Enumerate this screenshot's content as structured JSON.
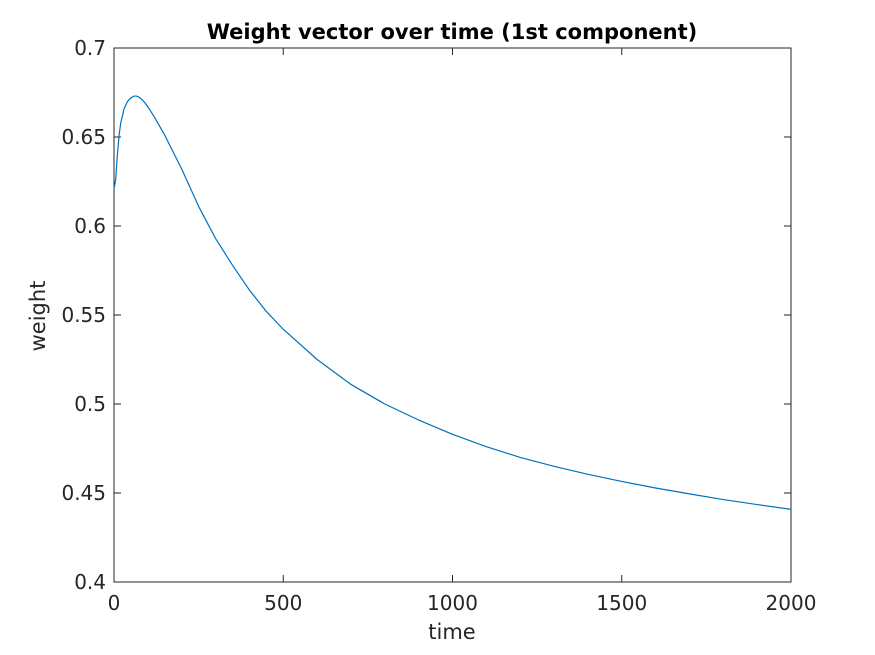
{
  "chart_data": {
    "type": "line",
    "title": "Weight vector over time (1st component)",
    "xlabel": "time",
    "ylabel": "weight",
    "xlim": [
      0,
      2000
    ],
    "ylim": [
      0.4,
      0.7
    ],
    "xticks": [
      0,
      500,
      1000,
      1500,
      2000
    ],
    "xtick_labels": [
      "0",
      "500",
      "1000",
      "1500",
      "2000"
    ],
    "yticks": [
      0.4,
      0.45,
      0.5,
      0.55,
      0.6,
      0.65,
      0.7
    ],
    "ytick_labels": [
      "0.4",
      "0.45",
      "0.5",
      "0.55",
      "0.6",
      "0.65",
      "0.7"
    ],
    "grid": false,
    "legend": false,
    "series": [
      {
        "color": "#0072bd",
        "x": [
          0,
          5,
          10,
          15,
          20,
          30,
          40,
          50,
          60,
          65,
          70,
          80,
          90,
          100,
          120,
          150,
          200,
          250,
          300,
          350,
          400,
          450,
          500,
          600,
          700,
          800,
          900,
          1000,
          1100,
          1200,
          1300,
          1400,
          1500,
          1600,
          1700,
          1800,
          1900,
          2000
        ],
        "y": [
          0.621,
          0.626,
          0.64,
          0.651,
          0.658,
          0.666,
          0.67,
          0.672,
          0.673,
          0.673,
          0.6728,
          0.6715,
          0.6695,
          0.667,
          0.661,
          0.651,
          0.632,
          0.611,
          0.593,
          0.578,
          0.564,
          0.552,
          0.542,
          0.525,
          0.511,
          0.5,
          0.491,
          0.483,
          0.476,
          0.47,
          0.465,
          0.4605,
          0.4565,
          0.4528,
          0.4495,
          0.4463,
          0.4435,
          0.4408
        ]
      }
    ]
  }
}
